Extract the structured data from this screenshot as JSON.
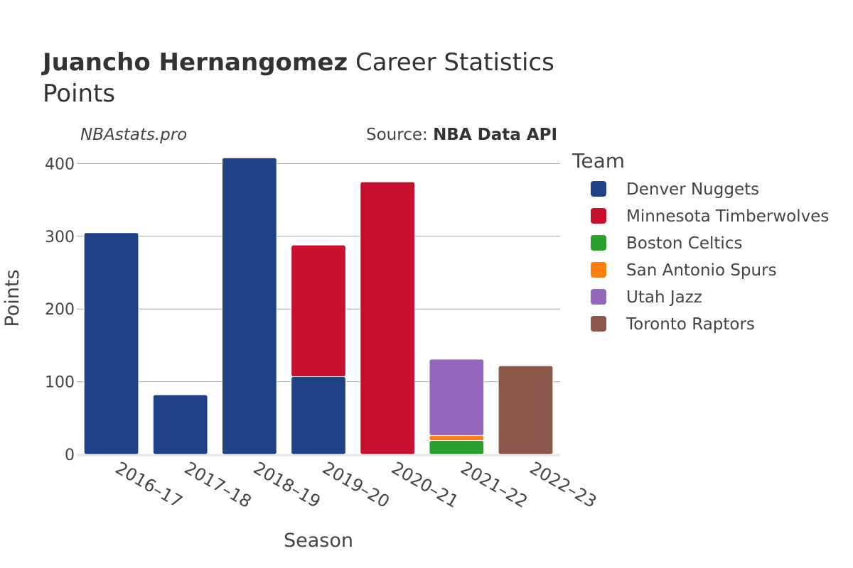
{
  "header": {
    "player_name": "Juancho Hernangomez",
    "title_rest": " Career Statistics",
    "subtitle": "Points",
    "brand": "NBAstats.pro",
    "source_prefix": "Source: ",
    "source_name": "NBA Data API"
  },
  "chart_data": {
    "type": "bar",
    "stacked": true,
    "xlabel": "Season",
    "ylabel": "Points",
    "ylim": [
      0,
      420
    ],
    "yticks": [
      0,
      100,
      200,
      300,
      400
    ],
    "grid": true,
    "legend_title": "Team",
    "legend_placement": "right",
    "categories": [
      "2016–17",
      "2017–18",
      "2018–19",
      "2019–20",
      "2020–21",
      "2021–22",
      "2022–23"
    ],
    "series": [
      {
        "name": "Denver Nuggets",
        "color": "#1f4287",
        "values": [
          305,
          82,
          408,
          107,
          0,
          0,
          0
        ]
      },
      {
        "name": "Minnesota Timberwolves",
        "color": "#c8102e",
        "values": [
          0,
          0,
          0,
          181,
          375,
          0,
          0
        ]
      },
      {
        "name": "Boston Celtics",
        "color": "#2ca02c",
        "values": [
          0,
          0,
          0,
          0,
          0,
          19,
          0
        ]
      },
      {
        "name": "San Antonio Spurs",
        "color": "#ff7f0e",
        "values": [
          0,
          0,
          0,
          0,
          0,
          7,
          0
        ]
      },
      {
        "name": "Utah Jazz",
        "color": "#9467bd",
        "values": [
          0,
          0,
          0,
          0,
          0,
          105,
          0
        ]
      },
      {
        "name": "Toronto Raptors",
        "color": "#8c564b",
        "values": [
          0,
          0,
          0,
          0,
          0,
          0,
          122
        ]
      }
    ]
  }
}
